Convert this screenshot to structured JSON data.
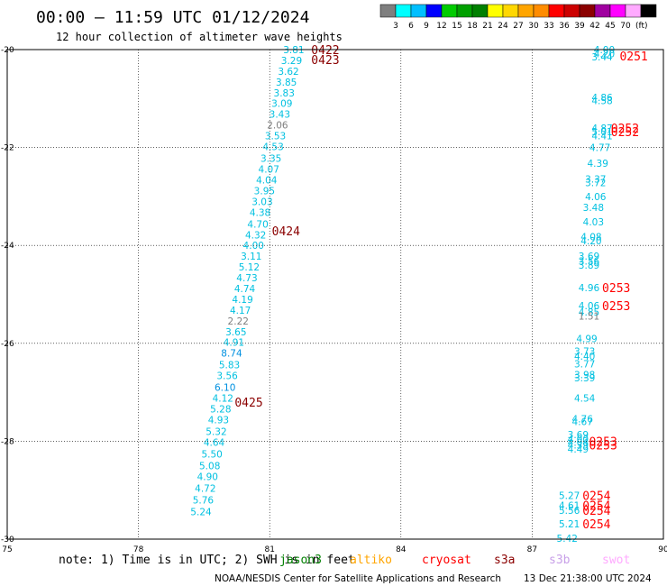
{
  "header": {
    "title": "00:00 – 11:59 UTC 01/12/2024",
    "subtitle": "12 hour collection of altimeter wave heights"
  },
  "colorbar": {
    "colors": [
      "#7f7f7f",
      "#00ffff",
      "#00bfff",
      "#0000ff",
      "#00cc00",
      "#00a000",
      "#008000",
      "#ffff00",
      "#ffd700",
      "#ffa500",
      "#ff8c00",
      "#ff0000",
      "#cc0000",
      "#8b0000",
      "#a000a0",
      "#ff00ff",
      "#ffaaff",
      "#000000"
    ],
    "labels": [
      "3",
      "6",
      "9",
      "12",
      "15",
      "18",
      "21",
      "24",
      "27",
      "30",
      "33",
      "36",
      "39",
      "42",
      "45",
      "70"
    ],
    "unit": "(ft)"
  },
  "footer": {
    "note": "note:  1) Time is in UTC; 2) SWH is in feet",
    "missions": [
      {
        "name": "jason3",
        "color": "#008000"
      },
      {
        "name": "altiko",
        "color": "#ffa500"
      },
      {
        "name": "cryosat",
        "color": "#ff0000"
      },
      {
        "name": "s3a",
        "color": "#8b0000"
      },
      {
        "name": "s3b",
        "color": "#c8a0e8"
      },
      {
        "name": "swot",
        "color": "#ffaaff"
      }
    ],
    "credit": "NOAA/NESDIS Center for Satellite Applications and Research",
    "timestamp": "13 Dec 21:38:00 UTC 2024"
  },
  "chart_data": {
    "type": "scatter",
    "xlim": [
      75,
      90
    ],
    "ylim": [
      -30,
      -20
    ],
    "x_ticks": [
      75,
      78,
      81,
      84,
      87,
      90
    ],
    "y_ticks": [
      -20,
      -22,
      -24,
      -26,
      -28,
      -30
    ],
    "x_tick_labels": [
      "75",
      "78",
      "81",
      "84",
      "87",
      "90"
    ],
    "y_tick_labels": [
      "-20",
      "-22",
      "-24",
      "-26",
      "-28",
      "-30"
    ],
    "grid": true,
    "track_labels": [
      {
        "text": "0422",
        "x": 81.95,
        "y": -20.0,
        "color": "#8b0000"
      },
      {
        "text": "0423",
        "x": 81.95,
        "y": -20.2,
        "color": "#8b0000"
      },
      {
        "text": "0424",
        "x": 81.05,
        "y": -23.7,
        "color": "#8b0000"
      },
      {
        "text": "0425",
        "x": 80.2,
        "y": -27.2,
        "color": "#8b0000"
      },
      {
        "text": "0251",
        "x": 89.0,
        "y": -20.13,
        "color": "#ff0000"
      },
      {
        "text": "0252",
        "x": 88.8,
        "y": -21.6,
        "color": "#ff0000"
      },
      {
        "text": "0252",
        "x": 88.8,
        "y": -21.68,
        "color": "#ff0000"
      },
      {
        "text": "0253",
        "x": 88.6,
        "y": -24.86,
        "color": "#ff0000"
      },
      {
        "text": "0253",
        "x": 88.6,
        "y": -25.23,
        "color": "#ff0000"
      },
      {
        "text": "0253",
        "x": 88.3,
        "y": -28.0,
        "color": "#ff0000"
      },
      {
        "text": "0253",
        "x": 88.3,
        "y": -28.08,
        "color": "#ff0000"
      },
      {
        "text": "0254",
        "x": 88.15,
        "y": -29.11,
        "color": "#ff0000"
      },
      {
        "text": "0254",
        "x": 88.15,
        "y": -29.31,
        "color": "#ff0000"
      },
      {
        "text": "0254",
        "x": 88.15,
        "y": -29.41,
        "color": "#ff0000"
      },
      {
        "text": "0254",
        "x": 88.15,
        "y": -29.69,
        "color": "#ff0000"
      }
    ],
    "series": [
      {
        "points": [
          {
            "x": 81.55,
            "y": -20.0,
            "v": "3.81",
            "color": "#00c0e0"
          },
          {
            "x": 81.5,
            "y": -20.22,
            "v": "3.29",
            "color": "#00c0e0"
          },
          {
            "x": 81.43,
            "y": -20.44,
            "v": "3.62",
            "color": "#00c0e0"
          },
          {
            "x": 81.38,
            "y": -20.66,
            "v": "3.85",
            "color": "#00c0e0"
          },
          {
            "x": 81.33,
            "y": -20.88,
            "v": "3.83",
            "color": "#00c0e0"
          },
          {
            "x": 81.28,
            "y": -21.1,
            "v": "3.09",
            "color": "#00c0e0"
          },
          {
            "x": 81.23,
            "y": -21.32,
            "v": "3.43",
            "color": "#00c0e0"
          },
          {
            "x": 81.18,
            "y": -21.54,
            "v": "2.06",
            "color": "#7f7f7f"
          },
          {
            "x": 81.13,
            "y": -21.76,
            "v": "3.53",
            "color": "#00c0e0"
          },
          {
            "x": 81.08,
            "y": -21.98,
            "v": "4.53",
            "color": "#00c0e0"
          },
          {
            "x": 81.03,
            "y": -22.22,
            "v": "3.35",
            "color": "#00c0e0"
          },
          {
            "x": 80.98,
            "y": -22.44,
            "v": "4.07",
            "color": "#00c0e0"
          },
          {
            "x": 80.93,
            "y": -22.66,
            "v": "4.04",
            "color": "#00c0e0"
          },
          {
            "x": 80.88,
            "y": -22.88,
            "v": "3.95",
            "color": "#00c0e0"
          },
          {
            "x": 80.83,
            "y": -23.1,
            "v": "3.03",
            "color": "#00c0e0"
          },
          {
            "x": 80.78,
            "y": -23.32,
            "v": "4.38",
            "color": "#00c0e0"
          },
          {
            "x": 80.73,
            "y": -23.56,
            "v": "4.70",
            "color": "#00c0e0"
          },
          {
            "x": 80.68,
            "y": -23.78,
            "v": "4.32",
            "color": "#00c0e0"
          },
          {
            "x": 80.63,
            "y": -24.0,
            "v": "4.00",
            "color": "#00c0e0"
          },
          {
            "x": 80.58,
            "y": -24.22,
            "v": "3.11",
            "color": "#00c0e0"
          },
          {
            "x": 80.53,
            "y": -24.44,
            "v": "5.12",
            "color": "#00c0e0"
          },
          {
            "x": 80.48,
            "y": -24.66,
            "v": "4.73",
            "color": "#00c0e0"
          },
          {
            "x": 80.43,
            "y": -24.88,
            "v": "4.74",
            "color": "#00c0e0"
          },
          {
            "x": 80.38,
            "y": -25.1,
            "v": "4.19",
            "color": "#00c0e0"
          },
          {
            "x": 80.33,
            "y": -25.32,
            "v": "4.17",
            "color": "#00c0e0"
          },
          {
            "x": 80.28,
            "y": -25.54,
            "v": "2.22",
            "color": "#7f7f7f"
          },
          {
            "x": 80.23,
            "y": -25.76,
            "v": "3.65",
            "color": "#00c0e0"
          },
          {
            "x": 80.18,
            "y": -25.98,
            "v": "4.91",
            "color": "#00c0e0"
          },
          {
            "x": 80.13,
            "y": -26.2,
            "v": "8.74",
            "color": "#0090e0"
          },
          {
            "x": 80.08,
            "y": -26.44,
            "v": "5.83",
            "color": "#00c0e0"
          },
          {
            "x": 80.03,
            "y": -26.66,
            "v": "3.56",
            "color": "#00c0e0"
          },
          {
            "x": 79.98,
            "y": -26.9,
            "v": "6.10",
            "color": "#0090e0"
          },
          {
            "x": 79.93,
            "y": -27.12,
            "v": "4.12",
            "color": "#00c0e0"
          },
          {
            "x": 79.88,
            "y": -27.34,
            "v": "5.28",
            "color": "#00c0e0"
          },
          {
            "x": 79.83,
            "y": -27.56,
            "v": "4.93",
            "color": "#00c0e0"
          },
          {
            "x": 79.78,
            "y": -27.8,
            "v": "5.32",
            "color": "#00c0e0"
          },
          {
            "x": 79.73,
            "y": -28.02,
            "v": "4.64",
            "color": "#00c0e0"
          },
          {
            "x": 79.68,
            "y": -28.26,
            "v": "5.50",
            "color": "#00c0e0"
          },
          {
            "x": 79.63,
            "y": -28.5,
            "v": "5.08",
            "color": "#00c0e0"
          },
          {
            "x": 79.58,
            "y": -28.72,
            "v": "4.90",
            "color": "#00c0e0"
          },
          {
            "x": 79.53,
            "y": -28.96,
            "v": "4.72",
            "color": "#00c0e0"
          },
          {
            "x": 79.48,
            "y": -29.2,
            "v": "5.76",
            "color": "#00c0e0"
          },
          {
            "x": 79.43,
            "y": -29.44,
            "v": "5.24",
            "color": "#00c0e0"
          }
        ]
      },
      {
        "points": [
          {
            "x": 88.65,
            "y": -20.0,
            "v": "4.00",
            "color": "#00c0e0"
          },
          {
            "x": 88.65,
            "y": -20.08,
            "v": "4.20",
            "color": "#00c0e0"
          },
          {
            "x": 88.6,
            "y": -20.15,
            "v": "3.44",
            "color": "#00c0e0"
          },
          {
            "x": 88.6,
            "y": -20.98,
            "v": "4.86",
            "color": "#00c0e0"
          },
          {
            "x": 88.6,
            "y": -21.04,
            "v": "4.58",
            "color": "#00c0e0"
          },
          {
            "x": 88.6,
            "y": -21.6,
            "v": "4.87",
            "color": "#00c0e0"
          },
          {
            "x": 88.6,
            "y": -21.68,
            "v": "5.01",
            "color": "#00c0e0"
          },
          {
            "x": 88.6,
            "y": -21.76,
            "v": "4.41",
            "color": "#00c0e0"
          },
          {
            "x": 88.55,
            "y": -22.0,
            "v": "4.77",
            "color": "#00c0e0"
          },
          {
            "x": 88.5,
            "y": -22.32,
            "v": "4.39",
            "color": "#00c0e0"
          },
          {
            "x": 88.45,
            "y": -22.64,
            "v": "3.37",
            "color": "#00c0e0"
          },
          {
            "x": 88.45,
            "y": -22.72,
            "v": "3.72",
            "color": "#00c0e0"
          },
          {
            "x": 88.45,
            "y": -23.0,
            "v": "4.06",
            "color": "#00c0e0"
          },
          {
            "x": 88.4,
            "y": -23.22,
            "v": "3.48",
            "color": "#00c0e0"
          },
          {
            "x": 88.4,
            "y": -23.52,
            "v": "4.03",
            "color": "#00c0e0"
          },
          {
            "x": 88.35,
            "y": -23.82,
            "v": "4.08",
            "color": "#00c0e0"
          },
          {
            "x": 88.35,
            "y": -23.9,
            "v": "4.20",
            "color": "#00c0e0"
          },
          {
            "x": 88.3,
            "y": -24.22,
            "v": "3.69",
            "color": "#00c0e0"
          },
          {
            "x": 88.3,
            "y": -24.32,
            "v": "3.56",
            "color": "#00c0e0"
          },
          {
            "x": 88.3,
            "y": -24.4,
            "v": "3.89",
            "color": "#00c0e0"
          },
          {
            "x": 88.3,
            "y": -24.86,
            "v": "4.96",
            "color": "#00c0e0"
          },
          {
            "x": 88.3,
            "y": -25.23,
            "v": "4.06",
            "color": "#00c0e0"
          },
          {
            "x": 88.3,
            "y": -25.36,
            "v": "4.85",
            "color": "#00c0e0"
          },
          {
            "x": 88.3,
            "y": -25.44,
            "v": "1.51",
            "color": "#7f7f7f"
          },
          {
            "x": 88.25,
            "y": -25.9,
            "v": "4.99",
            "color": "#00c0e0"
          },
          {
            "x": 88.2,
            "y": -26.16,
            "v": "3.73",
            "color": "#00c0e0"
          },
          {
            "x": 88.2,
            "y": -26.26,
            "v": "4.40",
            "color": "#00c0e0"
          },
          {
            "x": 88.2,
            "y": -26.42,
            "v": "3.77",
            "color": "#00c0e0"
          },
          {
            "x": 88.2,
            "y": -26.64,
            "v": "3.98",
            "color": "#00c0e0"
          },
          {
            "x": 88.2,
            "y": -26.7,
            "v": "3.39",
            "color": "#00c0e0"
          },
          {
            "x": 88.2,
            "y": -27.12,
            "v": "4.54",
            "color": "#00c0e0"
          },
          {
            "x": 88.15,
            "y": -27.54,
            "v": "4.76",
            "color": "#00c0e0"
          },
          {
            "x": 88.15,
            "y": -27.6,
            "v": "4.67",
            "color": "#00c0e0"
          },
          {
            "x": 88.05,
            "y": -27.86,
            "v": "3.69",
            "color": "#00c0e0"
          },
          {
            "x": 88.05,
            "y": -27.96,
            "v": "4.00",
            "color": "#00c0e0"
          },
          {
            "x": 88.05,
            "y": -28.02,
            "v": "4.04",
            "color": "#00c0e0"
          },
          {
            "x": 88.05,
            "y": -28.08,
            "v": "4.39",
            "color": "#00c0e0"
          },
          {
            "x": 88.05,
            "y": -28.16,
            "v": "4.49",
            "color": "#00c0e0"
          },
          {
            "x": 87.85,
            "y": -29.11,
            "v": "5.27",
            "color": "#00c0e0"
          },
          {
            "x": 87.85,
            "y": -29.31,
            "v": "4.61",
            "color": "#00c0e0"
          },
          {
            "x": 87.85,
            "y": -29.41,
            "v": "5.56",
            "color": "#00c0e0"
          },
          {
            "x": 87.85,
            "y": -29.69,
            "v": "5.21",
            "color": "#00c0e0"
          },
          {
            "x": 87.8,
            "y": -29.98,
            "v": "5.42",
            "color": "#00c0e0"
          }
        ]
      }
    ]
  }
}
